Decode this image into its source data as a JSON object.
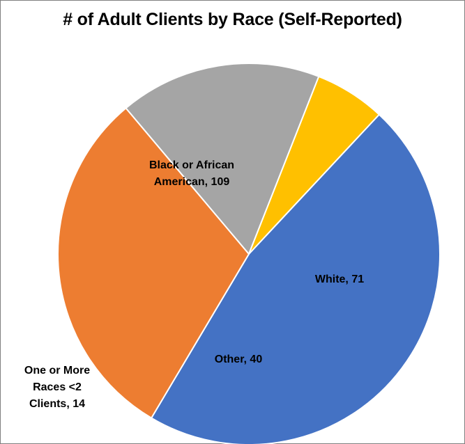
{
  "chart_data": {
    "type": "pie",
    "title": "# of Adult Clients by Race (Self-Reported)",
    "slices": [
      {
        "label": "Black or African American",
        "value": 109,
        "color": "#4472c4",
        "label_lines": [
          "Black or African",
          "American, 109"
        ]
      },
      {
        "label": "White",
        "value": 71,
        "color": "#ed7d31",
        "label_lines": [
          "White, 71"
        ]
      },
      {
        "label": "Other",
        "value": 40,
        "color": "#a5a5a5",
        "label_lines": [
          "Other, 40"
        ]
      },
      {
        "label": "One or More Races <2 Clients",
        "value": 14,
        "color": "#ffc000",
        "label_lines": [
          "One or More",
          "Races <2",
          "Clients, 14"
        ]
      }
    ],
    "start_angle_deg": -47,
    "direction": "clockwise",
    "legend": "none"
  }
}
